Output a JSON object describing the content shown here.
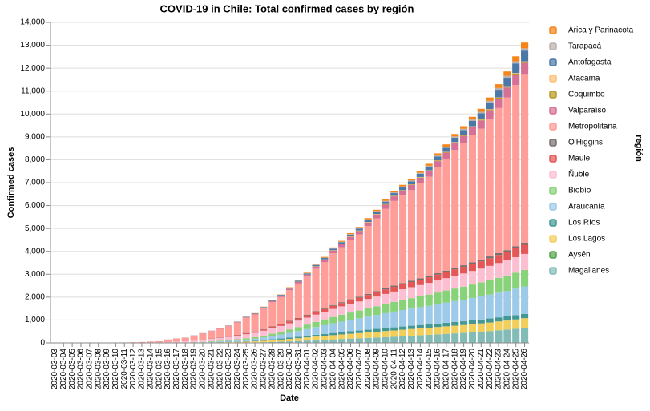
{
  "chart_data": {
    "type": "stacked-bar",
    "title": "COVID-19 in Chile: Total confirmed cases by región",
    "x_label": "Date",
    "y_label": "Confirmed cases",
    "legend_title": "región",
    "grid": true,
    "ylim": [
      0,
      14000
    ],
    "yticks": [
      0,
      {
        "value": 1000,
        "label": "1,000"
      },
      {
        "value": 2000,
        "label": "2,000"
      },
      {
        "value": 3000,
        "label": "3,000"
      },
      {
        "value": 4000,
        "label": "4,000"
      },
      {
        "value": 5000,
        "label": "5,000"
      },
      {
        "value": 6000,
        "label": "6,000"
      },
      {
        "value": 7000,
        "label": "7,000"
      },
      {
        "value": 8000,
        "label": "8,000"
      },
      {
        "value": 9000,
        "label": "9,000"
      },
      {
        "value": 10000,
        "label": "10,000"
      },
      {
        "value": 11000,
        "label": "11,000"
      },
      {
        "value": 12000,
        "label": "12,000"
      },
      {
        "value": 13000,
        "label": "13,000"
      },
      {
        "value": 14000,
        "label": "14,000"
      }
    ],
    "categories": [
      "2020-03-03",
      "2020-03-04",
      "2020-03-05",
      "2020-03-06",
      "2020-03-07",
      "2020-03-08",
      "2020-03-09",
      "2020-03-10",
      "2020-03-11",
      "2020-03-12",
      "2020-03-13",
      "2020-03-14",
      "2020-03-15",
      "2020-03-16",
      "2020-03-17",
      "2020-03-18",
      "2020-03-19",
      "2020-03-20",
      "2020-03-21",
      "2020-03-22",
      "2020-03-23",
      "2020-03-24",
      "2020-03-25",
      "2020-03-26",
      "2020-03-27",
      "2020-03-28",
      "2020-03-29",
      "2020-03-30",
      "2020-03-31",
      "2020-04-01",
      "2020-04-02",
      "2020-04-03",
      "2020-04-04",
      "2020-04-05",
      "2020-04-06",
      "2020-04-07",
      "2020-04-08",
      "2020-04-09",
      "2020-04-10",
      "2020-04-11",
      "2020-04-12",
      "2020-04-13",
      "2020-04-14",
      "2020-04-15",
      "2020-04-16",
      "2020-04-17",
      "2020-04-18",
      "2020-04-19",
      "2020-04-20",
      "2020-04-21",
      "2020-04-22",
      "2020-04-23",
      "2020-04-24",
      "2020-04-25",
      "2020-04-26"
    ],
    "series": [
      {
        "name": "Arica y Parinacota",
        "color": "#f58518",
        "values": [
          0,
          0,
          0,
          0,
          0,
          0,
          0,
          0,
          0,
          0,
          0,
          0,
          0,
          0,
          0,
          0,
          0,
          0,
          1,
          1,
          2,
          3,
          4,
          6,
          8,
          10,
          12,
          15,
          18,
          22,
          26,
          30,
          34,
          38,
          42,
          46,
          50,
          55,
          60,
          65,
          70,
          75,
          80,
          86,
          92,
          98,
          105,
          112,
          120,
          130,
          145,
          165,
          190,
          220,
          250
        ]
      },
      {
        "name": "Tarapacá",
        "color": "#bab0ac",
        "values": [
          0,
          0,
          0,
          0,
          0,
          0,
          0,
          0,
          0,
          0,
          0,
          0,
          0,
          0,
          0,
          1,
          1,
          2,
          2,
          3,
          3,
          4,
          5,
          6,
          7,
          8,
          9,
          10,
          12,
          14,
          16,
          18,
          20,
          22,
          24,
          26,
          28,
          30,
          33,
          36,
          39,
          42,
          45,
          48,
          51,
          54,
          57,
          60,
          64,
          68,
          72,
          78,
          84,
          92,
          100
        ]
      },
      {
        "name": "Antofagasta",
        "color": "#4c78a8",
        "values": [
          0,
          0,
          0,
          0,
          0,
          0,
          0,
          0,
          0,
          0,
          0,
          0,
          0,
          1,
          1,
          2,
          3,
          4,
          5,
          7,
          9,
          12,
          15,
          18,
          22,
          26,
          30,
          35,
          40,
          46,
          52,
          58,
          64,
          70,
          76,
          82,
          90,
          98,
          106,
          114,
          122,
          130,
          140,
          150,
          162,
          175,
          190,
          210,
          230,
          260,
          290,
          330,
          370,
          420,
          470
        ]
      },
      {
        "name": "Atacama",
        "color": "#ffbf79",
        "values": [
          0,
          0,
          0,
          0,
          0,
          0,
          0,
          0,
          0,
          0,
          0,
          0,
          0,
          0,
          0,
          0,
          0,
          0,
          0,
          0,
          0,
          1,
          1,
          1,
          2,
          2,
          3,
          3,
          4,
          4,
          5,
          5,
          6,
          6,
          7,
          7,
          8,
          8,
          9,
          9,
          10,
          10,
          11,
          11,
          12,
          12,
          13,
          13,
          14,
          15,
          16,
          17,
          18,
          19,
          20
        ]
      },
      {
        "name": "Coquimbo",
        "color": "#b79a20",
        "values": [
          0,
          0,
          0,
          0,
          0,
          0,
          0,
          0,
          0,
          0,
          0,
          0,
          0,
          0,
          0,
          0,
          0,
          0,
          1,
          1,
          2,
          2,
          3,
          3,
          4,
          5,
          6,
          7,
          8,
          9,
          10,
          11,
          12,
          13,
          14,
          15,
          16,
          17,
          18,
          19,
          20,
          21,
          22,
          23,
          24,
          26,
          28,
          30,
          32,
          34,
          37,
          40,
          43,
          46,
          50
        ]
      },
      {
        "name": "Valparaíso",
        "color": "#d67195",
        "values": [
          0,
          0,
          0,
          0,
          0,
          0,
          0,
          0,
          0,
          0,
          0,
          2,
          3,
          4,
          5,
          6,
          8,
          10,
          12,
          15,
          18,
          22,
          26,
          30,
          38,
          45,
          52,
          60,
          70,
          80,
          95,
          110,
          120,
          130,
          140,
          150,
          160,
          170,
          185,
          200,
          210,
          220,
          235,
          250,
          265,
          280,
          300,
          320,
          340,
          360,
          385,
          410,
          430,
          455,
          480
        ]
      },
      {
        "name": "Metropolitana",
        "color": "#ff9d98",
        "values": [
          0,
          0,
          0,
          1,
          2,
          4,
          6,
          8,
          12,
          18,
          24,
          36,
          44,
          98,
          120,
          138,
          205,
          260,
          318,
          370,
          430,
          530,
          660,
          740,
          900,
          1060,
          1170,
          1340,
          1500,
          1660,
          1860,
          2010,
          2260,
          2400,
          2590,
          2720,
          2960,
          3180,
          3470,
          3700,
          3820,
          3960,
          4160,
          4330,
          4630,
          4870,
          5150,
          5330,
          5560,
          5720,
          6000,
          6340,
          6670,
          7050,
          7370
        ]
      },
      {
        "name": "O'Higgins",
        "color": "#79706e",
        "values": [
          0,
          0,
          0,
          0,
          0,
          0,
          0,
          0,
          0,
          0,
          0,
          0,
          1,
          1,
          2,
          2,
          3,
          4,
          5,
          6,
          8,
          10,
          12,
          14,
          16,
          18,
          20,
          23,
          26,
          29,
          32,
          35,
          38,
          40,
          42,
          44,
          46,
          48,
          50,
          52,
          54,
          56,
          58,
          60,
          62,
          64,
          66,
          69,
          72,
          75,
          78,
          81,
          84,
          87,
          90
        ]
      },
      {
        "name": "Maule",
        "color": "#e45756",
        "values": [
          1,
          2,
          2,
          2,
          2,
          2,
          2,
          2,
          2,
          3,
          3,
          4,
          4,
          5,
          6,
          7,
          10,
          12,
          15,
          20,
          25,
          30,
          40,
          45,
          55,
          65,
          75,
          85,
          95,
          105,
          115,
          125,
          135,
          145,
          155,
          165,
          175,
          185,
          195,
          205,
          215,
          225,
          235,
          245,
          255,
          265,
          280,
          290,
          305,
          320,
          335,
          350,
          365,
          385,
          400
        ]
      },
      {
        "name": "Ñuble",
        "color": "#fcbfd2",
        "values": [
          0,
          0,
          0,
          0,
          2,
          3,
          4,
          5,
          7,
          9,
          12,
          14,
          16,
          30,
          45,
          55,
          70,
          90,
          110,
          125,
          140,
          160,
          180,
          195,
          215,
          235,
          250,
          265,
          280,
          300,
          315,
          330,
          350,
          365,
          380,
          395,
          410,
          425,
          440,
          455,
          470,
          480,
          495,
          510,
          525,
          540,
          560,
          575,
          590,
          605,
          625,
          645,
          660,
          680,
          700
        ]
      },
      {
        "name": "Biobío",
        "color": "#88d27a",
        "values": [
          0,
          0,
          0,
          0,
          0,
          0,
          0,
          0,
          0,
          0,
          0,
          1,
          2,
          3,
          5,
          8,
          12,
          16,
          22,
          30,
          38,
          46,
          56,
          68,
          85,
          105,
          125,
          150,
          175,
          200,
          230,
          255,
          280,
          300,
          320,
          340,
          360,
          380,
          400,
          420,
          440,
          455,
          470,
          490,
          510,
          530,
          550,
          570,
          590,
          610,
          630,
          650,
          670,
          695,
          720
        ]
      },
      {
        "name": "Araucanía",
        "color": "#9ecae9",
        "values": [
          0,
          0,
          0,
          0,
          0,
          0,
          0,
          0,
          0,
          0,
          0,
          0,
          0,
          2,
          3,
          4,
          8,
          12,
          20,
          29,
          40,
          52,
          68,
          86,
          110,
          140,
          175,
          210,
          250,
          290,
          335,
          380,
          420,
          460,
          500,
          535,
          575,
          610,
          650,
          690,
          720,
          750,
          780,
          810,
          845,
          880,
          915,
          945,
          980,
          1010,
          1045,
          1080,
          1115,
          1160,
          1200
        ]
      },
      {
        "name": "Los Ríos",
        "color": "#439894",
        "values": [
          0,
          0,
          0,
          0,
          0,
          0,
          0,
          0,
          0,
          0,
          0,
          0,
          0,
          0,
          1,
          1,
          2,
          3,
          5,
          8,
          12,
          16,
          20,
          25,
          33,
          40,
          48,
          57,
          64,
          70,
          78,
          85,
          95,
          102,
          108,
          113,
          119,
          125,
          130,
          135,
          139,
          143,
          147,
          150,
          154,
          157,
          160,
          163,
          167,
          170,
          174,
          178,
          182,
          186,
          190
        ]
      },
      {
        "name": "Los Lagos",
        "color": "#f2cf5b",
        "values": [
          0,
          0,
          0,
          0,
          0,
          0,
          0,
          0,
          0,
          0,
          1,
          1,
          1,
          2,
          5,
          6,
          8,
          11,
          18,
          22,
          28,
          33,
          40,
          48,
          60,
          75,
          90,
          105,
          120,
          140,
          156,
          170,
          185,
          197,
          212,
          225,
          238,
          250,
          265,
          275,
          283,
          292,
          300,
          308,
          318,
          327,
          336,
          345,
          355,
          365,
          375,
          386,
          395,
          408,
          420
        ]
      },
      {
        "name": "Aysén",
        "color": "#54a24b",
        "values": [
          0,
          0,
          0,
          0,
          0,
          0,
          0,
          0,
          0,
          0,
          0,
          0,
          0,
          0,
          0,
          0,
          0,
          0,
          0,
          0,
          0,
          0,
          0,
          0,
          0,
          0,
          0,
          1,
          1,
          1,
          1,
          1,
          1,
          2,
          2,
          2,
          2,
          2,
          3,
          3,
          3,
          4,
          4,
          4,
          4,
          5,
          5,
          5,
          5,
          6,
          6,
          6,
          7,
          7,
          8
        ]
      },
      {
        "name": "Magallanes",
        "color": "#83bcb6",
        "values": [
          0,
          0,
          0,
          0,
          0,
          0,
          0,
          0,
          0,
          0,
          0,
          0,
          0,
          1,
          1,
          1,
          1,
          2,
          4,
          6,
          7,
          10,
          16,
          20,
          30,
          40,
          52,
          66,
          82,
          100,
          120,
          135,
          151,
          169,
          185,
          200,
          216,
          234,
          250,
          266,
          290,
          310,
          330,
          350,
          371,
          390,
          410,
          430,
          455,
          480,
          510,
          545,
          575,
          610,
          650
        ]
      }
    ]
  }
}
